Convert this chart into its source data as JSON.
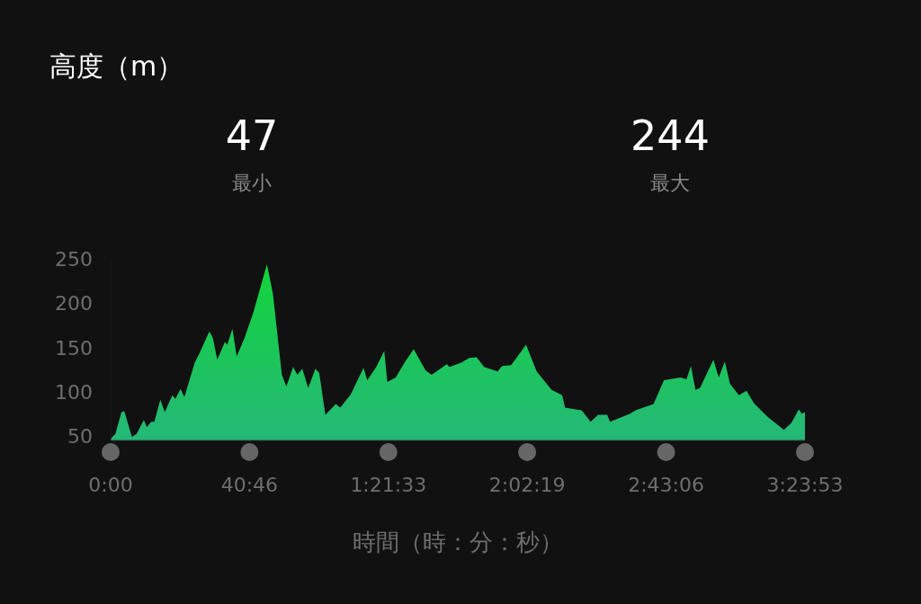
{
  "chart_data": {
    "type": "area",
    "title": "高度（m）",
    "xlabel": "時間（時：分：秒）",
    "annotations": [
      "47",
      "最小",
      "244",
      "最大"
    ],
    "xlim": [
      0,
      203.883
    ],
    "ylim": [
      45,
      250
    ],
    "xticks": [
      {
        "value": 0,
        "label": "0:00"
      },
      {
        "value": 40.767,
        "label": "40:46"
      },
      {
        "value": 81.55,
        "label": "1:21:33"
      },
      {
        "value": 122.317,
        "label": "2:02:19"
      },
      {
        "value": 163.1,
        "label": "2:43:06"
      },
      {
        "value": 203.883,
        "label": "3:23:53"
      }
    ],
    "yticks": [
      50,
      100,
      150,
      200,
      250
    ],
    "grid": false,
    "series": [
      {
        "color": "#12d43a",
        "x": [
          0,
          1.38,
          3.18,
          4.02,
          6.24,
          7.56,
          9.78,
          10.62,
          11.94,
          12.84,
          14.58,
          15.9,
          18.12,
          19.02,
          20.52,
          21.66,
          24.72,
          26.04,
          28.98,
          30,
          31.32,
          33.54,
          34.26,
          35.76,
          37.02,
          39.24,
          41.88,
          45.9,
          47.64,
          50.28,
          51.6,
          53.58,
          54.84,
          56.28,
          58.02,
          60.12,
          61.26,
          62.58,
          63.06,
          66.12,
          67.44,
          70.5,
          74.28,
          75.36,
          78,
          80.34,
          81.24,
          83.7,
          86.34,
          88.98,
          92.52,
          94.26,
          98.7,
          99.54,
          103.08,
          105.3,
          107.46,
          109.68,
          113.64,
          114.96,
          117.6,
          121.98,
          125.1,
          129.48,
          132.6,
          133.44,
          136.56,
          138.3,
          140.94,
          143.16,
          145.8,
          146.64,
          152.4,
          154.14,
          159.42,
          162.48,
          167.34,
          169.08,
          170.4,
          171.72,
          173.04,
          177,
          178.56,
          180.36,
          181.86,
          184.5,
          186.72,
          188.88,
          192.84,
          197.7,
          199.92,
          202.08,
          202.98,
          203.88
        ],
        "values": [
          47,
          52,
          77,
          78,
          49,
          52,
          68,
          60,
          66,
          66,
          91,
          77,
          96,
          92,
          103,
          94,
          133,
          143,
          168,
          161,
          136,
          156,
          153,
          171,
          140,
          160,
          189,
          244,
          211,
          119,
          106,
          128,
          119,
          126,
          104,
          126,
          121,
          86,
          74,
          86,
          82,
          97,
          127,
          113,
          128,
          146,
          111,
          116,
          133,
          148,
          124,
          119,
          131,
          128,
          133,
          138,
          139,
          128,
          123,
          129,
          130,
          153,
          123,
          102,
          96,
          82,
          80,
          79,
          66,
          74,
          74,
          66,
          75,
          79,
          86,
          113,
          116,
          114,
          129,
          102,
          104,
          136,
          116,
          134,
          109,
          96,
          101,
          87,
          72,
          57,
          65,
          80,
          75,
          77
        ]
      }
    ]
  }
}
